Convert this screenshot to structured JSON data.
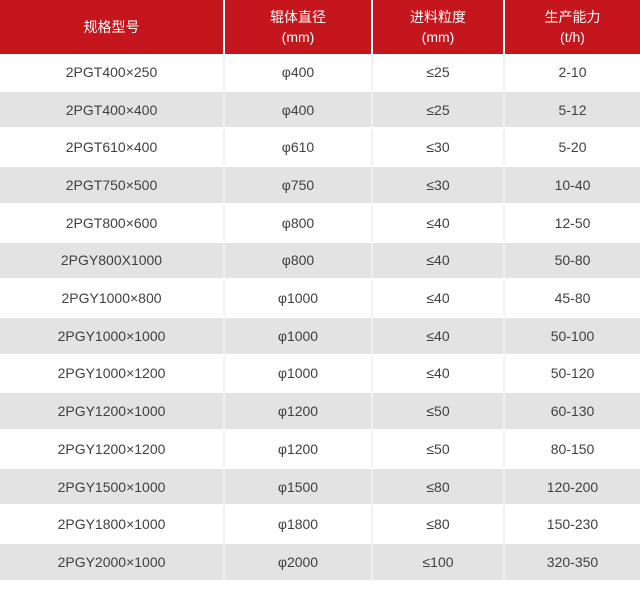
{
  "table_colors": {
    "header_background": "#c4161c",
    "header_text": "#ffffff",
    "row_alt_background": "#e3e3e3",
    "row_background": "#ffffff",
    "body_text": "#404040"
  },
  "chart_data": {
    "type": "table",
    "columns": [
      {
        "label": "规格型号",
        "unit": ""
      },
      {
        "label": "辊体直径",
        "unit": "(mm)"
      },
      {
        "label": "进料粒度",
        "unit": "(mm)"
      },
      {
        "label": "生产能力",
        "unit": "(t/h)"
      }
    ],
    "rows": [
      [
        "2PGT400×250",
        "φ400",
        "≤25",
        "2-10"
      ],
      [
        "2PGT400×400",
        "φ400",
        "≤25",
        "5-12"
      ],
      [
        "2PGT610×400",
        "φ610",
        "≤30",
        "5-20"
      ],
      [
        "2PGT750×500",
        "φ750",
        "≤30",
        "10-40"
      ],
      [
        "2PGT800×600",
        "φ800",
        "≤40",
        "12-50"
      ],
      [
        "2PGY800X1000",
        "φ800",
        "≤40",
        "50-80"
      ],
      [
        "2PGY1000×800",
        "φ1000",
        "≤40",
        "45-80"
      ],
      [
        "2PGY1000×1000",
        "φ1000",
        "≤40",
        "50-100"
      ],
      [
        "2PGY1000×1200",
        "φ1000",
        "≤40",
        "50-120"
      ],
      [
        "2PGY1200×1000",
        "φ1200",
        "≤50",
        "60-130"
      ],
      [
        "2PGY1200×1200",
        "φ1200",
        "≤50",
        "80-150"
      ],
      [
        "2PGY1500×1000",
        "φ1500",
        "≤80",
        "120-200"
      ],
      [
        "2PGY1800×1000",
        "φ1800",
        "≤80",
        "150-230"
      ],
      [
        "2PGY2000×1000",
        "φ2000",
        "≤100",
        "320-350"
      ]
    ]
  }
}
